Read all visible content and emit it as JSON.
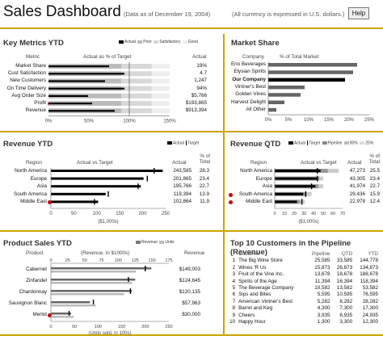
{
  "header": {
    "title": "Sales Dashboard",
    "asof": "(Data as of December 19, 2004)",
    "currency": "(All currency is expressed in U.S. dollars.)",
    "help": "Help"
  },
  "km": {
    "title": "Key Metrics YTD",
    "legend": [
      "Actual",
      "Poor",
      "Satisfactory",
      "Good"
    ],
    "col_metric": "Metric",
    "col_chart": "Actual as % of Target",
    "col_actual": "Actual",
    "rows": [
      {
        "label": "Market Share",
        "actual": "19%",
        "pct": 75,
        "alert": false
      },
      {
        "label": "Cust Satisfaction",
        "actual": "4.7",
        "pct": 94,
        "alert": false
      },
      {
        "label": "New Customers",
        "actual": "1,247",
        "pct": 70,
        "alert": false
      },
      {
        "label": "On Time Delivery",
        "actual": "94%",
        "pct": 94,
        "alert": false
      },
      {
        "label": "Avg Order Size",
        "actual": "$5,766",
        "pct": 49,
        "alert": false
      },
      {
        "label": "Profit",
        "actual": "$193,865",
        "pct": 54,
        "alert": true
      },
      {
        "label": "Revenue",
        "actual": "$913,394",
        "pct": 82,
        "alert": false
      }
    ],
    "ticks": [
      "0%",
      "50%",
      "100%",
      "150%"
    ]
  },
  "ms": {
    "title": "Market Share",
    "col_company": "Company",
    "col_pct": "% of Total Market",
    "rows": [
      {
        "label": "Eno Beverages",
        "value": 22,
        "bold": false
      },
      {
        "label": "Elysian Spirits",
        "value": 21,
        "bold": false
      },
      {
        "label": "Our Company",
        "value": 19,
        "bold": true
      },
      {
        "label": "Vintner's Best",
        "value": 9,
        "bold": false
      },
      {
        "label": "Golden Vines",
        "value": 8,
        "bold": false
      },
      {
        "label": "Harvest Delight",
        "value": 4,
        "bold": false
      },
      {
        "label": "All Other",
        "value": 2,
        "bold": false
      }
    ],
    "ticks": [
      "0%",
      "5%",
      "10%",
      "15%",
      "20%",
      "25%"
    ]
  },
  "ry": {
    "title": "Revenue YTD",
    "legend": [
      "Actual",
      "Target"
    ],
    "col_region": "Region",
    "col_chart": "Actual vs Target",
    "col_actual": "Actual",
    "col_pct": "% of Total",
    "rows": [
      {
        "label": "North America",
        "actual": "243,585",
        "pct": "28.3",
        "value": 243.6,
        "target": 225,
        "alert": false
      },
      {
        "label": "Europe",
        "actual": "201,865",
        "pct": "23.4",
        "value": 201.9,
        "target": 210,
        "alert": false
      },
      {
        "label": "Asia",
        "actual": "195,766",
        "pct": "22.7",
        "value": 195.8,
        "target": 190,
        "alert": false
      },
      {
        "label": "South America",
        "actual": "119,394",
        "pct": "13.9",
        "value": 119.4,
        "target": 125,
        "alert": false
      },
      {
        "label": "Middle East",
        "actual": "102,864",
        "pct": "11.9",
        "value": 102.9,
        "target": 95,
        "alert": true
      }
    ],
    "ticks": [
      "0",
      "50",
      "100",
      "150",
      "200",
      "250"
    ],
    "unit": "($1,000s)"
  },
  "rq": {
    "title": "Revenue QTD",
    "legend": [
      "Actual",
      "Target",
      "Pipeline",
      "90%",
      "25%"
    ],
    "col_region": "Region",
    "col_chart": "Actual vs Target",
    "col_actual": "Actual",
    "col_pct": "% of Total",
    "rows": [
      {
        "label": "North America",
        "actual": "47,273",
        "pct": "25.5",
        "value": 47.3,
        "target": 44,
        "pipe": 66,
        "alert": false
      },
      {
        "label": "Europe",
        "actual": "43,305",
        "pct": "23.4",
        "value": 43.3,
        "target": 44,
        "pipe": 50,
        "alert": false
      },
      {
        "label": "Asia",
        "actual": "41,974",
        "pct": "22.7",
        "value": 42.0,
        "target": 38,
        "pipe": 50,
        "alert": false
      },
      {
        "label": "South America",
        "actual": "29,436",
        "pct": "15.9",
        "value": 29.4,
        "target": 32,
        "pipe": 38,
        "alert": true
      },
      {
        "label": "Middle East",
        "actual": "22,978",
        "pct": "12.4",
        "value": 23.0,
        "target": 28,
        "pipe": 31,
        "alert": true
      }
    ],
    "ticks": [
      "0",
      "10",
      "20",
      "30",
      "40",
      "50",
      "60",
      "70"
    ],
    "unit": "($1,000s)"
  },
  "ps": {
    "title": "Product Sales YTD",
    "legend": [
      "Revenue",
      "Units"
    ],
    "col_product": "Product",
    "col_chart": "(Revenue, in $1000s)",
    "col_rev": "Revenue",
    "rows": [
      {
        "label": "Cabernet",
        "revenue": "$149,003",
        "value": 149,
        "target": 140,
        "units": 180,
        "alert": false
      },
      {
        "label": "Zinfandel",
        "revenue": "$124,645",
        "value": 125,
        "target": 115,
        "units": 172,
        "alert": false
      },
      {
        "label": "Chardonnay",
        "revenue": "$120,135",
        "value": 120,
        "target": 118,
        "units": 155,
        "alert": false
      },
      {
        "label": "Sauvignon Blanc",
        "revenue": "$57,963",
        "value": 58,
        "target": 63,
        "units": 95,
        "alert": false
      },
      {
        "label": "Merlot",
        "revenue": "$30,000",
        "value": 30,
        "target": 27,
        "units": 48,
        "alert": true
      }
    ],
    "ticks_top": [
      "0",
      "25",
      "50",
      "75",
      "100",
      "125",
      "150",
      "175"
    ],
    "ticks_bottom": [
      "0",
      "50",
      "100",
      "150",
      "200",
      "250"
    ],
    "unit": "(Units sold, in 100s)"
  },
  "top10": {
    "title": "Top 10 Customers in the Pipeline (Revenue)",
    "headers": [
      "",
      "Customer",
      "Pipeline",
      "QTD",
      "YTD"
    ],
    "rows": [
      [
        "1",
        "The Big Wine Store",
        "25,585",
        "33,585",
        "144,778"
      ],
      [
        "2",
        "Wines 'R Us",
        "15,873",
        "26,873",
        "134,873"
      ],
      [
        "3",
        "Fruit of the Vine Inc.",
        "13,678",
        "18,678",
        "188,678"
      ],
      [
        "4",
        "Spirits of the Age",
        "11,394",
        "16,394",
        "118,394"
      ],
      [
        "5",
        "The Beverage Company",
        "10,582",
        "13,582",
        "53,582"
      ],
      [
        "6",
        "Sips and Bites",
        "5,595",
        "10,595",
        "76,595"
      ],
      [
        "7",
        "American Vintner's Best",
        "5,282",
        "8,282",
        "28,282"
      ],
      [
        "8",
        "Barrel and Keg",
        "4,300",
        "7,300",
        "17,300"
      ],
      [
        "9",
        "Cheers",
        "3,935",
        "6,935",
        "24,935"
      ],
      [
        "10",
        "Happy Hour",
        "1,300",
        "3,300",
        "12,300"
      ]
    ]
  },
  "colors": {
    "gold": "#c9a400",
    "alert": "#cc0000",
    "bar": "#000000"
  }
}
